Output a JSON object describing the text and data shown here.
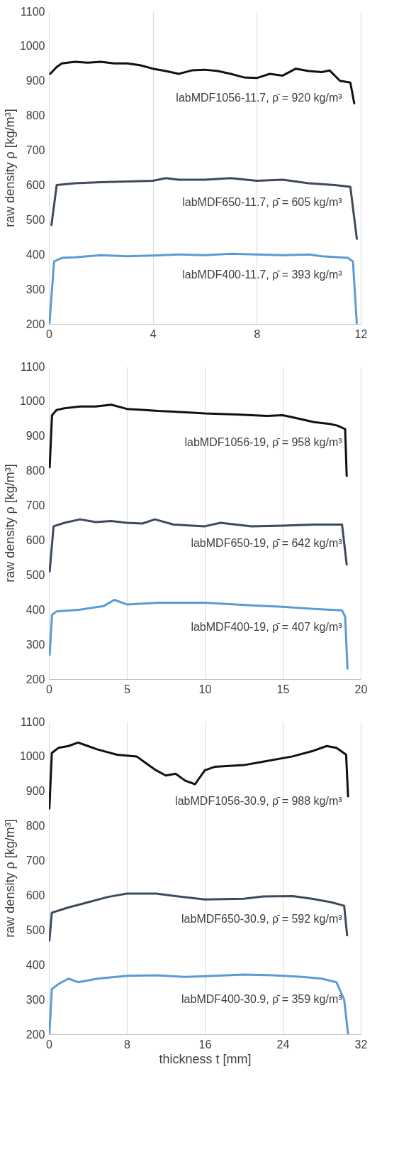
{
  "chart_data": [
    {
      "type": "line",
      "ylabel": "raw density ρ [kg/m³]",
      "xlim": [
        0,
        12
      ],
      "xticks": [
        0,
        4,
        8,
        12
      ],
      "ylim": [
        200,
        1100
      ],
      "yticks": [
        200,
        300,
        400,
        500,
        600,
        700,
        800,
        900,
        1000,
        1100
      ],
      "grid": "x",
      "line_style": "solid",
      "series": [
        {
          "name": "labMDF1056-11.7, ρ̄ = 920 kg/m³",
          "color": "#111111",
          "x": [
            0.05,
            0.3,
            0.5,
            1,
            1.5,
            2,
            2.5,
            3,
            3.5,
            4,
            4.5,
            5,
            5.5,
            6,
            6.5,
            7,
            7.5,
            8,
            8.5,
            9,
            9.5,
            10,
            10.5,
            10.8,
            11.2,
            11.6,
            11.75
          ],
          "values": [
            920,
            940,
            950,
            955,
            952,
            955,
            950,
            950,
            945,
            935,
            928,
            920,
            930,
            932,
            928,
            920,
            910,
            908,
            920,
            915,
            935,
            928,
            925,
            930,
            900,
            895,
            835
          ]
        },
        {
          "name": "labMDF650-11.7, ρ̄ = 605 kg/m³",
          "color": "#3d4a5c",
          "x": [
            0.1,
            0.3,
            1,
            2,
            3,
            4,
            4.5,
            5,
            6,
            7,
            8,
            9,
            10,
            11,
            11.6,
            11.85
          ],
          "values": [
            485,
            600,
            605,
            608,
            610,
            612,
            620,
            615,
            615,
            620,
            612,
            615,
            605,
            600,
            595,
            445
          ]
        },
        {
          "name": "labMDF400-11.7, ρ̄ = 393 kg/m³",
          "color": "#5b9bd5",
          "x": [
            0.02,
            0.2,
            0.5,
            1,
            2,
            3,
            4,
            5,
            6,
            7,
            8,
            9,
            10,
            10.5,
            11.5,
            11.7,
            11.85
          ],
          "values": [
            200,
            380,
            390,
            392,
            398,
            395,
            397,
            400,
            398,
            402,
            400,
            398,
            400,
            395,
            390,
            380,
            200
          ]
        }
      ]
    },
    {
      "type": "line",
      "ylabel": "raw density ρ [kg/m³]",
      "xlim": [
        0,
        20
      ],
      "xticks": [
        0,
        5,
        10,
        15,
        20
      ],
      "ylim": [
        200,
        1100
      ],
      "yticks": [
        200,
        300,
        400,
        500,
        600,
        700,
        800,
        900,
        1000,
        1100
      ],
      "grid": "x",
      "line_style": "solid",
      "series": [
        {
          "name": "labMDF1056-19, ρ̄ = 958 kg/m³",
          "color": "#111111",
          "x": [
            0.05,
            0.2,
            0.5,
            1,
            2,
            3,
            4,
            5,
            6,
            7,
            8,
            10,
            12,
            14,
            15,
            16,
            17,
            18,
            18.5,
            19,
            19.1
          ],
          "values": [
            810,
            960,
            975,
            980,
            985,
            985,
            990,
            978,
            975,
            972,
            970,
            965,
            962,
            958,
            960,
            950,
            940,
            935,
            930,
            920,
            785
          ]
        },
        {
          "name": "labMDF650-19, ρ̄ = 642 kg/m³",
          "color": "#3d4a5c",
          "x": [
            0.05,
            0.3,
            1,
            2,
            3,
            4,
            5,
            6,
            6.8,
            8,
            10,
            11,
            12,
            13,
            15,
            17,
            18.8,
            19.1
          ],
          "values": [
            510,
            640,
            650,
            660,
            652,
            655,
            650,
            648,
            660,
            645,
            640,
            650,
            645,
            640,
            642,
            645,
            645,
            530
          ]
        },
        {
          "name": "labMDF400-19, ρ̄ = 407 kg/m³",
          "color": "#5b9bd5",
          "x": [
            0.05,
            0.2,
            0.5,
            2,
            3.5,
            4.2,
            5,
            7,
            10,
            13,
            15,
            17,
            18.8,
            19,
            19.15
          ],
          "values": [
            270,
            385,
            395,
            400,
            410,
            428,
            415,
            420,
            420,
            412,
            408,
            402,
            398,
            380,
            230
          ]
        }
      ]
    },
    {
      "type": "line",
      "xlabel": "thickness t [mm]",
      "ylabel": "raw density ρ [kg/m³]",
      "xlim": [
        0,
        32
      ],
      "xticks": [
        0,
        8,
        16,
        24,
        32
      ],
      "ylim": [
        200,
        1100
      ],
      "yticks": [
        200,
        300,
        400,
        500,
        600,
        700,
        800,
        900,
        1000,
        1100
      ],
      "grid": "x",
      "line_style": "solid",
      "series": [
        {
          "name": "labMDF1056-30.9, ρ̄ = 988 kg/m³",
          "color": "#111111",
          "x": [
            0.05,
            0.3,
            1,
            2,
            3,
            4,
            5,
            7,
            9,
            10,
            11,
            12,
            13,
            14,
            15,
            16,
            17,
            20,
            22,
            25,
            27,
            28.5,
            29.5,
            30,
            30.5,
            30.7
          ],
          "values": [
            850,
            1010,
            1025,
            1030,
            1040,
            1030,
            1020,
            1005,
            1000,
            980,
            960,
            945,
            950,
            930,
            920,
            960,
            970,
            975,
            985,
            1000,
            1015,
            1030,
            1025,
            1015,
            1005,
            885
          ]
        },
        {
          "name": "labMDF650-30.9, ρ̄ = 592 kg/m³",
          "color": "#3d4a5c",
          "x": [
            0.05,
            0.3,
            2,
            4,
            6,
            8,
            11,
            13,
            16,
            20,
            22,
            25,
            27,
            29,
            30.3,
            30.6
          ],
          "values": [
            470,
            550,
            565,
            580,
            595,
            605,
            605,
            598,
            588,
            590,
            597,
            598,
            590,
            580,
            570,
            485
          ]
        },
        {
          "name": "labMDF400-30.9, ρ̄ = 359 kg/m³",
          "color": "#5b9bd5",
          "x": [
            0.05,
            0.3,
            1,
            2,
            3,
            5,
            8,
            11,
            14,
            17,
            20,
            23,
            26,
            28,
            29.5,
            30.3,
            30.7
          ],
          "values": [
            200,
            330,
            345,
            360,
            350,
            360,
            368,
            370,
            365,
            368,
            372,
            370,
            365,
            360,
            350,
            300,
            200
          ]
        }
      ]
    }
  ]
}
